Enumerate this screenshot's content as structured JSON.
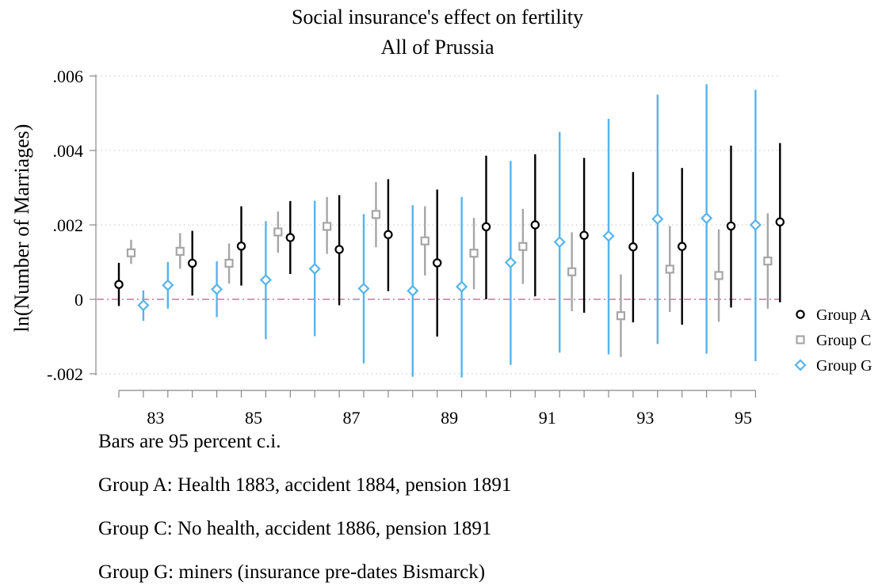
{
  "chart_data": {
    "type": "scatter",
    "title": "Social insurance's effect on fertility",
    "subtitle": "All of Prussia",
    "ylabel": "ln(Number of Marriages)",
    "xlabel": "",
    "ylim": [
      -0.0022,
      0.0062
    ],
    "xlim": [
      82,
      95.4
    ],
    "yticks": [
      -0.002,
      0,
      0.002,
      0.004,
      0.006
    ],
    "ytick_labels": [
      "-.002",
      "0",
      ".002",
      ".004",
      ".006"
    ],
    "xticks": [
      83,
      85,
      87,
      89,
      91,
      93,
      95
    ],
    "xtick_labels": [
      "83",
      "85",
      "87",
      "89",
      "91",
      "93",
      "95"
    ],
    "grid": true,
    "reference_line": {
      "y": 0,
      "color": "#c27ba0",
      "style": "dash-dot"
    },
    "legend_position": "right",
    "series": [
      {
        "name": "Group A",
        "color": "#000000",
        "marker": "circle",
        "x": [
          82.25,
          83.75,
          84.75,
          85.75,
          86.75,
          87.75,
          88.75,
          89.75,
          90.75,
          91.75,
          92.75,
          93.75,
          94.75,
          95.75
        ],
        "y": [
          0.0004,
          0.00097,
          0.00143,
          0.00166,
          0.00134,
          0.00174,
          0.00098,
          0.00195,
          0.002,
          0.00172,
          0.00141,
          0.00142,
          0.00197,
          0.00208
        ],
        "lower": [
          -0.00018,
          0.0001,
          0.00037,
          0.00068,
          -0.00016,
          0.00022,
          -0.001,
          0.0,
          8e-05,
          -0.00036,
          -0.00062,
          -0.00068,
          -0.00022,
          -8e-05
        ],
        "upper": [
          0.00098,
          0.00184,
          0.0025,
          0.00264,
          0.0028,
          0.00323,
          0.00295,
          0.00386,
          0.0039,
          0.0038,
          0.00342,
          0.00353,
          0.00413,
          0.0042
        ]
      },
      {
        "name": "Group C",
        "color": "#a6a6a6",
        "marker": "square",
        "x": [
          82.5,
          83.5,
          84.5,
          85.5,
          86.5,
          87.5,
          88.5,
          89.5,
          90.5,
          91.5,
          92.5,
          93.5,
          94.5,
          95.5
        ],
        "y": [
          0.00125,
          0.00129,
          0.00097,
          0.00181,
          0.00196,
          0.00228,
          0.00157,
          0.00124,
          0.00142,
          0.00074,
          -0.00044,
          0.00081,
          0.00064,
          0.00103
        ],
        "lower": [
          0.00095,
          0.00082,
          0.00042,
          0.00125,
          0.00122,
          0.0014,
          0.00064,
          0.00027,
          0.00041,
          -0.00032,
          -0.00155,
          -0.00034,
          -0.0006,
          -0.00025
        ],
        "upper": [
          0.0016,
          0.00178,
          0.0015,
          0.00236,
          0.00275,
          0.00315,
          0.0025,
          0.00219,
          0.00243,
          0.0018,
          0.00067,
          0.00197,
          0.00188,
          0.00231
        ]
      },
      {
        "name": "Group G",
        "color": "#56b4e9",
        "marker": "diamond",
        "x": [
          82.75,
          83.25,
          84.25,
          85.25,
          86.25,
          87.25,
          88.25,
          89.25,
          90.25,
          91.25,
          92.25,
          93.25,
          94.25,
          95.25
        ],
        "y": [
          -0.00016,
          0.00038,
          0.00027,
          0.00052,
          0.00082,
          0.00029,
          0.00023,
          0.00034,
          0.00099,
          0.00154,
          0.0017,
          0.00216,
          0.00218,
          0.002
        ],
        "lower": [
          -0.00058,
          -0.00025,
          -0.00048,
          -0.00107,
          -0.00099,
          -0.00172,
          -0.00208,
          -0.0021,
          -0.00176,
          -0.00143,
          -0.00148,
          -0.0012,
          -0.00146,
          -0.00166
        ],
        "upper": [
          0.00024,
          0.001,
          0.00102,
          0.0021,
          0.00265,
          0.00229,
          0.00253,
          0.00275,
          0.00372,
          0.0045,
          0.00485,
          0.0055,
          0.00578,
          0.00563
        ]
      }
    ]
  },
  "notes": [
    "Bars are 95 percent c.i.",
    "Group A: Health 1883, accident 1884, pension 1891",
    "Group C: No health, accident 1886, pension 1891",
    "Group G: miners (insurance pre-dates Bismarck)"
  ]
}
